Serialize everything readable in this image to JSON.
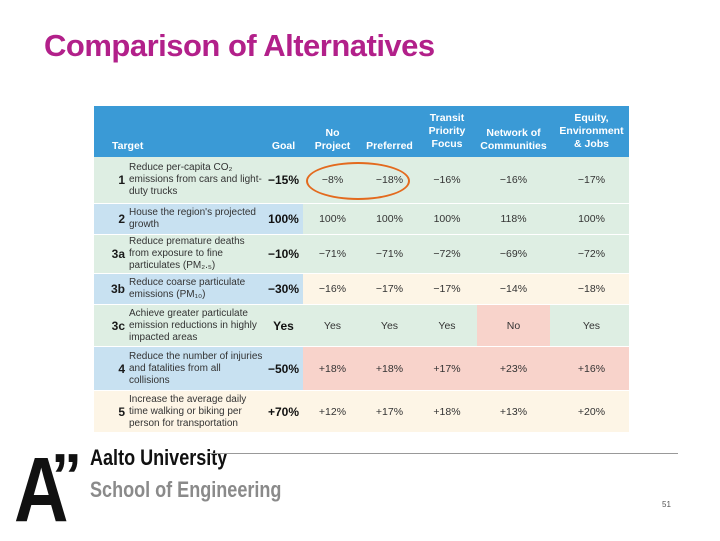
{
  "slide": {
    "title": "Comparison of Alternatives",
    "page_number": "51"
  },
  "logo": {
    "mark": "A”",
    "line1": "Aalto University",
    "line2": "School of Engineering"
  },
  "table": {
    "headers": {
      "target": "Target",
      "goal": "Goal",
      "no_project": [
        "No",
        "Project"
      ],
      "preferred": "Preferred",
      "transit": [
        "Transit",
        "Priority",
        "Focus"
      ],
      "network": [
        "Network of",
        "Communities"
      ],
      "equity": [
        "Equity,",
        "Environment",
        "& Jobs"
      ]
    },
    "rows": [
      {
        "num": "1",
        "target": "Reduce per-capita CO₂ emissions from cars and light-duty trucks",
        "goal": "−15%",
        "values": [
          "−8%",
          "−18%",
          "−16%",
          "−16%",
          "−17%"
        ]
      },
      {
        "num": "2",
        "target": "House the region's projected growth",
        "goal": "100%",
        "values": [
          "100%",
          "100%",
          "100%",
          "118%",
          "100%"
        ]
      },
      {
        "num": "3a",
        "target": "Reduce premature deaths from exposure to fine particulates (PM₂.₅)",
        "goal": "−10%",
        "values": [
          "−71%",
          "−71%",
          "−72%",
          "−69%",
          "−72%"
        ]
      },
      {
        "num": "3b",
        "target": "Reduce coarse particulate emissions (PM₁₀)",
        "goal": "−30%",
        "values": [
          "−16%",
          "−17%",
          "−17%",
          "−14%",
          "−18%"
        ]
      },
      {
        "num": "3c",
        "target": "Achieve greater particulate emission reductions in highly impacted areas",
        "goal": "Yes",
        "values": [
          "Yes",
          "Yes",
          "Yes",
          "No",
          "Yes"
        ]
      },
      {
        "num": "4",
        "target": "Reduce the number of injuries and fatalities from all collisions",
        "goal": "−50%",
        "values": [
          "+18%",
          "+18%",
          "+17%",
          "+23%",
          "+16%"
        ]
      },
      {
        "num": "5",
        "target": "Increase the average daily time walking or biking per person for transportation",
        "goal": "+70%",
        "values": [
          "+12%",
          "+17%",
          "+18%",
          "+13%",
          "+20%"
        ]
      }
    ],
    "colors": {
      "header": "#3a9ad6",
      "green": "#deeee3",
      "blue": "#c8e1f1",
      "cream": "#fdf5e6",
      "pink": "#f8d3cb",
      "highlight": "#e36a1e"
    }
  }
}
